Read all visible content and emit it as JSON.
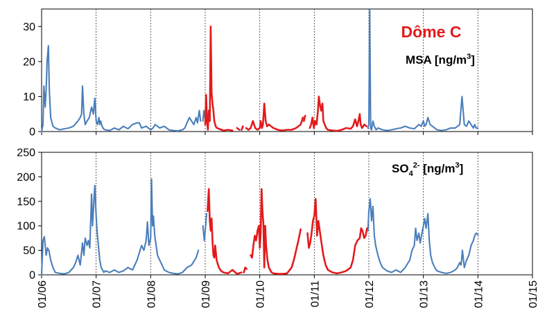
{
  "colors": {
    "blue": "#4A7EBB",
    "red": "#E31A1C",
    "axis": "#000000",
    "gridline": "#333333"
  },
  "chart_data": [
    {
      "type": "line",
      "title": "Dôme C",
      "title_color": "#E31A1C",
      "label_parts": {
        "main": "MSA [ng/m",
        "sup": "3",
        "tail": "]"
      },
      "ylim": [
        0,
        35
      ],
      "yticks": [
        "0",
        "10",
        "20",
        "30"
      ],
      "yticks_values": [
        0,
        10,
        20,
        30
      ],
      "x_unit": "months since 01/06",
      "xlim": [
        0,
        108
      ],
      "grid": "vertical dashed lines at yearly ticks",
      "series": [
        {
          "color": "blue",
          "x": [
            0,
            0.3,
            0.5,
            0.8,
            1.0,
            1.2,
            1.5,
            1.7,
            2.0,
            2.5,
            3,
            4,
            5,
            6,
            7,
            8,
            8.5,
            8.8,
            9.0,
            9.3,
            9.6,
            10,
            10.5,
            11,
            11.4,
            11.7,
            12,
            12.3,
            12.6,
            12.8,
            13.0,
            13.3,
            13.6,
            14,
            15,
            16,
            17,
            18,
            19,
            20,
            21,
            21.5,
            22,
            23,
            24,
            24.5,
            25,
            26,
            27,
            28,
            29,
            30,
            31,
            31.5,
            32,
            32.5,
            33,
            33.5,
            34,
            34.3,
            34.7,
            35
          ],
          "y": [
            0,
            2,
            13,
            7,
            12,
            20,
            24.5,
            12,
            4,
            1.5,
            1,
            0.5,
            0.8,
            1,
            1.5,
            3,
            4,
            5,
            13,
            5,
            2,
            3,
            4,
            7,
            5,
            9.5,
            3,
            2,
            4,
            2,
            3,
            1.5,
            0.8,
            0.5,
            0.3,
            1,
            0.5,
            1.5,
            0.8,
            2,
            2.5,
            2.5,
            1,
            1.5,
            0.5,
            1,
            2,
            1,
            1.5,
            0.5,
            0.3,
            0.2,
            0.5,
            1,
            2.5,
            4,
            3,
            2,
            4,
            2.5,
            6,
            3
          ]
        },
        {
          "color": "blue",
          "x": [
            35.5,
            35.7,
            35.9
          ],
          "y": [
            3,
            6,
            4
          ]
        },
        {
          "color": "red",
          "x": [
            36,
            36.2,
            36.4,
            36.6,
            36.8,
            37.0,
            37.2,
            37.4,
            37.6,
            37.8,
            38.0,
            38.3,
            38.6,
            39,
            40,
            41,
            42
          ],
          "y": [
            2,
            10.5,
            3,
            0.5,
            6,
            3,
            30,
            11,
            8,
            6,
            3,
            1.5,
            1,
            0.8,
            0.3,
            0.5,
            0.3
          ]
        },
        {
          "color": "red",
          "x": [
            43,
            43.5
          ],
          "y": [
            1,
            0.5
          ]
        },
        {
          "color": "red",
          "x": [
            44,
            44.3
          ],
          "y": [
            0.5,
            1.5
          ]
        },
        {
          "color": "red",
          "x": [
            45,
            45.5,
            46,
            46.5,
            47,
            47.5,
            48,
            48.2,
            48.5,
            48.7,
            49,
            49.3,
            49.6,
            50,
            51,
            52,
            53,
            54,
            55,
            56,
            57,
            57.5
          ],
          "y": [
            1,
            0.5,
            1,
            3,
            1,
            0.5,
            1,
            3,
            1,
            2,
            8,
            3,
            1.5,
            2,
            1,
            0.5,
            0.3,
            0.5,
            0.5,
            1,
            2,
            4
          ]
        },
        {
          "color": "red",
          "x": [
            57.7,
            58
          ],
          "y": [
            3,
            4.5
          ]
        },
        {
          "color": "red",
          "x": [
            59,
            59.3,
            59.6,
            59.9,
            60.2,
            60.5,
            60.8,
            61.0,
            61.2,
            61.5,
            61.8,
            62.0,
            62.3,
            62.6,
            63,
            64,
            65,
            66,
            67,
            68,
            68.5,
            69,
            69.4,
            69.7,
            70,
            70.2,
            70.5,
            71,
            71.5
          ],
          "y": [
            1,
            2,
            4,
            1,
            3,
            2,
            6,
            10,
            8,
            6,
            8,
            3,
            2,
            1,
            0.5,
            0.3,
            0.2,
            0.5,
            1,
            0.8,
            1.5,
            3.5,
            1.5,
            3,
            5,
            2,
            1,
            2,
            1.5
          ]
        },
        {
          "color": "blue",
          "x": [
            71.8,
            72,
            72.2,
            72.4,
            72.6,
            72.9,
            73.2,
            73.6,
            74,
            75,
            76,
            77,
            78,
            79,
            80,
            81,
            82,
            83,
            83.5,
            84,
            84.3,
            84.6,
            85,
            85.5,
            86,
            86.5,
            87,
            88,
            89,
            90,
            91,
            92,
            92.5,
            93,
            93.5,
            94,
            94.5,
            95,
            95.3,
            95.6,
            96
          ],
          "y": [
            1,
            2,
            35,
            1,
            0.5,
            3,
            1.5,
            0.5,
            1,
            0.5,
            0.3,
            0.5,
            0.8,
            1,
            1.5,
            1,
            0.8,
            2,
            1.5,
            3,
            1.5,
            2,
            4,
            2,
            1.5,
            1,
            0.5,
            0.3,
            0.5,
            1,
            1,
            2,
            10,
            2,
            1.5,
            3,
            2,
            1,
            2,
            1,
            1
          ]
        }
      ]
    },
    {
      "type": "line",
      "label_parts": {
        "main": "SO",
        "sub": "4",
        "sup": "2-",
        "tail": " [ng/m",
        "sup2": "3",
        "tail2": "]"
      },
      "ylim": [
        0,
        250
      ],
      "yticks": [
        "0",
        "50",
        "100",
        "150",
        "200",
        "250"
      ],
      "yticks_values": [
        0,
        50,
        100,
        150,
        200,
        250
      ],
      "xticks": [
        "01/06",
        "01/07",
        "01/08",
        "01/09",
        "01/10",
        "01/11",
        "01/12",
        "01/13",
        "01/14",
        "01/15"
      ],
      "xticks_values": [
        0,
        12,
        24,
        36,
        48,
        60,
        72,
        84,
        96,
        108
      ],
      "x_unit": "months since 01/06",
      "xlim": [
        0,
        108
      ],
      "grid": "vertical dashed lines at yearly ticks",
      "series": [
        {
          "color": "blue",
          "x": [
            0,
            0.3,
            0.6,
            1.0,
            1.3,
            1.6,
            2.0,
            2.5,
            3,
            4,
            5,
            6,
            7,
            7.5,
            8,
            8.5,
            9,
            9.3,
            9.6,
            10,
            10.3,
            10.6,
            11,
            11.2,
            11.5,
            11.7,
            12,
            12.2,
            12.5,
            12.8,
            13.1,
            13.4,
            13.7,
            14,
            15,
            16,
            17,
            18,
            19,
            20,
            21,
            22,
            22.5,
            23,
            23.3,
            23.6,
            24,
            24.2,
            24.4,
            24.6,
            24.9,
            25.2,
            25.5,
            26,
            26.5,
            27,
            28,
            29,
            30,
            31,
            32,
            33,
            34,
            34.5
          ],
          "y": [
            0,
            70,
            78,
            40,
            55,
            50,
            30,
            15,
            5,
            3,
            2,
            5,
            15,
            25,
            40,
            20,
            65,
            40,
            75,
            60,
            70,
            55,
            165,
            100,
            150,
            182,
            120,
            90,
            60,
            30,
            15,
            10,
            5,
            8,
            5,
            10,
            5,
            8,
            15,
            10,
            30,
            60,
            50,
            70,
            108,
            60,
            75,
            195,
            100,
            120,
            80,
            60,
            40,
            30,
            20,
            10,
            5,
            3,
            2,
            5,
            15,
            20,
            35,
            50
          ]
        },
        {
          "color": "blue",
          "x": [
            35.5,
            35.8,
            36.0,
            36.3
          ],
          "y": [
            100,
            70,
            90,
            125
          ]
        },
        {
          "color": "red",
          "x": [
            36.5,
            36.8,
            37.0,
            37.2,
            37.4,
            37.6,
            37.8,
            38.0,
            38.2,
            38.5,
            39,
            39.5,
            40,
            41,
            42,
            43,
            44
          ],
          "y": [
            130,
            175,
            110,
            90,
            115,
            70,
            40,
            35,
            60,
            30,
            15,
            8,
            5,
            3,
            10,
            2,
            5
          ]
        },
        {
          "color": "red",
          "x": [
            44.5,
            44.8,
            45.1
          ],
          "y": [
            5,
            15,
            12
          ]
        },
        {
          "color": "red",
          "x": [
            46,
            46.3,
            46.6,
            46.9,
            47.2,
            47.5,
            47.8,
            48,
            48.2,
            48.4,
            48.6,
            48.8,
            49.0,
            49.2,
            49.4,
            49.7,
            50,
            50.3,
            50.6,
            51,
            52,
            53,
            54,
            55,
            55.5,
            56,
            56.5,
            57
          ],
          "y": [
            40,
            35,
            60,
            80,
            70,
            90,
            100,
            55,
            85,
            175,
            130,
            105,
            15,
            100,
            60,
            30,
            15,
            10,
            5,
            3,
            2,
            2,
            3,
            15,
            30,
            50,
            70,
            93
          ]
        },
        {
          "color": "red",
          "x": [
            58.5,
            58.8,
            59.1,
            59.4,
            59.7,
            60,
            60.3,
            60.6,
            60.9,
            61.2,
            61.5,
            62,
            62.5,
            63,
            64,
            65,
            66,
            67,
            68,
            68.5,
            69,
            69.5,
            70,
            70.3,
            70.6,
            71,
            71.3,
            71.6
          ],
          "y": [
            85,
            55,
            65,
            85,
            110,
            120,
            155,
            80,
            110,
            90,
            70,
            40,
            20,
            10,
            5,
            3,
            5,
            8,
            15,
            30,
            60,
            70,
            75,
            95,
            90,
            75,
            80,
            95
          ]
        },
        {
          "color": "blue",
          "x": [
            71.8,
            72,
            72.3,
            72.6,
            72.9,
            73.2,
            73.5,
            74,
            74.5,
            75,
            76,
            77,
            78,
            79,
            80,
            81,
            81.5,
            82,
            82.3,
            82.6,
            83,
            83.3,
            83.6,
            84,
            84.3,
            84.6,
            85,
            85.3,
            85.6,
            86,
            86.5,
            87,
            88,
            89,
            90,
            91,
            91.5,
            92,
            92.3,
            92.6,
            93,
            93.5,
            94,
            94.5,
            95,
            95.3,
            95.6,
            96
          ],
          "y": [
            90,
            130,
            155,
            110,
            140,
            80,
            60,
            40,
            25,
            15,
            8,
            5,
            10,
            5,
            15,
            30,
            50,
            60,
            95,
            70,
            85,
            65,
            80,
            100,
            115,
            95,
            125,
            70,
            40,
            25,
            15,
            8,
            5,
            3,
            5,
            10,
            15,
            25,
            20,
            50,
            15,
            30,
            40,
            60,
            70,
            80,
            85,
            82
          ]
        }
      ]
    }
  ]
}
